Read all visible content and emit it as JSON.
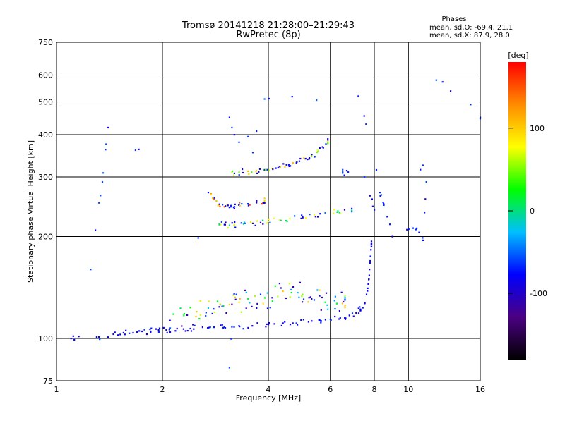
{
  "chart_data": {
    "type": "scatter",
    "title": "Tromsø 20141218 21:28:00–21:29:43",
    "subtitle": "RwPretec (8p)",
    "xlabel": "Frequency [MHz]",
    "ylabel": "Stationary phase Virtual Height [km]",
    "x_scale": "log",
    "y_scale": "log",
    "xlim": [
      1,
      16
    ],
    "ylim": [
      75,
      750
    ],
    "x_ticks": [
      "1",
      "2",
      "4",
      "6",
      "8",
      "10",
      "16"
    ],
    "y_ticks": [
      "75",
      "100",
      "200",
      "300",
      "400",
      "500",
      "600",
      "750"
    ],
    "grid": true,
    "stats_title": "Phases",
    "stats_O": "mean, sd,O: -69.4, 21.1",
    "stats_X": "mean, sd,X:  87.9, 28.0",
    "colorbar": {
      "label": "[deg]",
      "range": [
        -180,
        180
      ],
      "ticks": [
        "100",
        "0",
        "-100"
      ],
      "colors": [
        "#000000",
        "#4b0082",
        "#0000ff",
        "#00bfff",
        "#00ff00",
        "#ffff00",
        "#ff8c00",
        "#ff0000"
      ]
    },
    "series": [
      {
        "trace": "E-trace",
        "x": [
          1.1,
          1.3,
          1.45,
          1.55,
          1.65,
          1.75,
          1.85,
          1.95,
          2.05,
          2.2,
          2.4,
          2.6,
          2.8,
          3.0,
          3.3,
          3.6,
          4.0,
          4.4,
          4.8,
          5.2,
          5.6,
          6.0,
          6.4,
          6.8,
          7.1,
          7.3,
          7.5,
          7.6,
          7.7,
          7.75,
          7.8,
          7.85
        ],
        "y": [
          100,
          101,
          103,
          104,
          104,
          105,
          105,
          106,
          106,
          107,
          107,
          108,
          108,
          108,
          109,
          109,
          110,
          111,
          111,
          112,
          113,
          114,
          115,
          117,
          119,
          122,
          127,
          135,
          145,
          160,
          175,
          190
        ]
      },
      {
        "trace": "scatter-2",
        "x": [
          2.1,
          2.3,
          2.5,
          2.7,
          2.9,
          3.1,
          3.3,
          3.5,
          3.8,
          4.1,
          4.4,
          4.7,
          5.0,
          5.4,
          5.8,
          6.2,
          6.6
        ],
        "y": [
          113,
          117,
          120,
          123,
          124,
          126,
          128,
          131,
          135,
          132,
          138,
          142,
          135,
          130,
          128,
          133,
          125
        ]
      },
      {
        "trace": "F1-trace",
        "x": [
          2.9,
          3.0,
          3.1,
          3.2,
          3.4,
          3.6,
          3.8,
          4.0,
          4.3,
          4.6,
          5.0,
          5.4,
          5.8,
          6.3,
          6.9
        ],
        "y": [
          217,
          217,
          216,
          217,
          218,
          219,
          220,
          222,
          224,
          226,
          229,
          232,
          235,
          238,
          242
        ]
      },
      {
        "trace": "F1-upper",
        "x": [
          2.7,
          2.8,
          2.9,
          3.0,
          3.1,
          3.2,
          3.3,
          3.5,
          3.7,
          3.9
        ],
        "y": [
          270,
          258,
          248,
          245,
          244,
          245,
          248,
          250,
          252,
          255
        ]
      },
      {
        "trace": "F2-trace",
        "x": [
          3.15,
          3.3,
          3.5,
          3.7,
          3.9,
          4.1,
          4.3,
          4.5,
          4.7,
          4.9,
          5.1,
          5.3,
          5.5,
          5.7,
          5.9
        ],
        "y": [
          310,
          310,
          312,
          313,
          315,
          318,
          322,
          326,
          330,
          334,
          340,
          346,
          355,
          368,
          385
        ]
      },
      {
        "trace": "F2-upper",
        "x": [
          3.1,
          3.15,
          3.2,
          3.3,
          3.5,
          3.7
        ],
        "y": [
          450,
          420,
          400,
          380,
          395,
          410
        ]
      },
      {
        "trace": "sparse",
        "x": [
          1.25,
          1.35,
          1.4,
          3.1,
          3.9,
          7.2,
          8.3,
          8.5,
          9.0,
          10.5,
          11.0,
          12.0,
          16.0,
          8.0,
          7.5,
          6.5
        ],
        "y": [
          160,
          290,
          420,
          82,
          510,
          520,
          270,
          250,
          200,
          210,
          195,
          580,
          450,
          240,
          300,
          310
        ]
      }
    ],
    "phase": [
      [
        -90,
        -80,
        -70
      ],
      [
        -110,
        -95,
        -60,
        -30,
        20,
        60,
        100
      ],
      [
        -100,
        -90,
        -70,
        -50,
        0,
        80
      ],
      [
        -80,
        -75,
        -70,
        -60,
        100,
        150
      ],
      [
        -100,
        -90,
        -80,
        -70,
        40,
        70,
        100
      ],
      [
        -80,
        -70,
        -60
      ]
    ]
  }
}
